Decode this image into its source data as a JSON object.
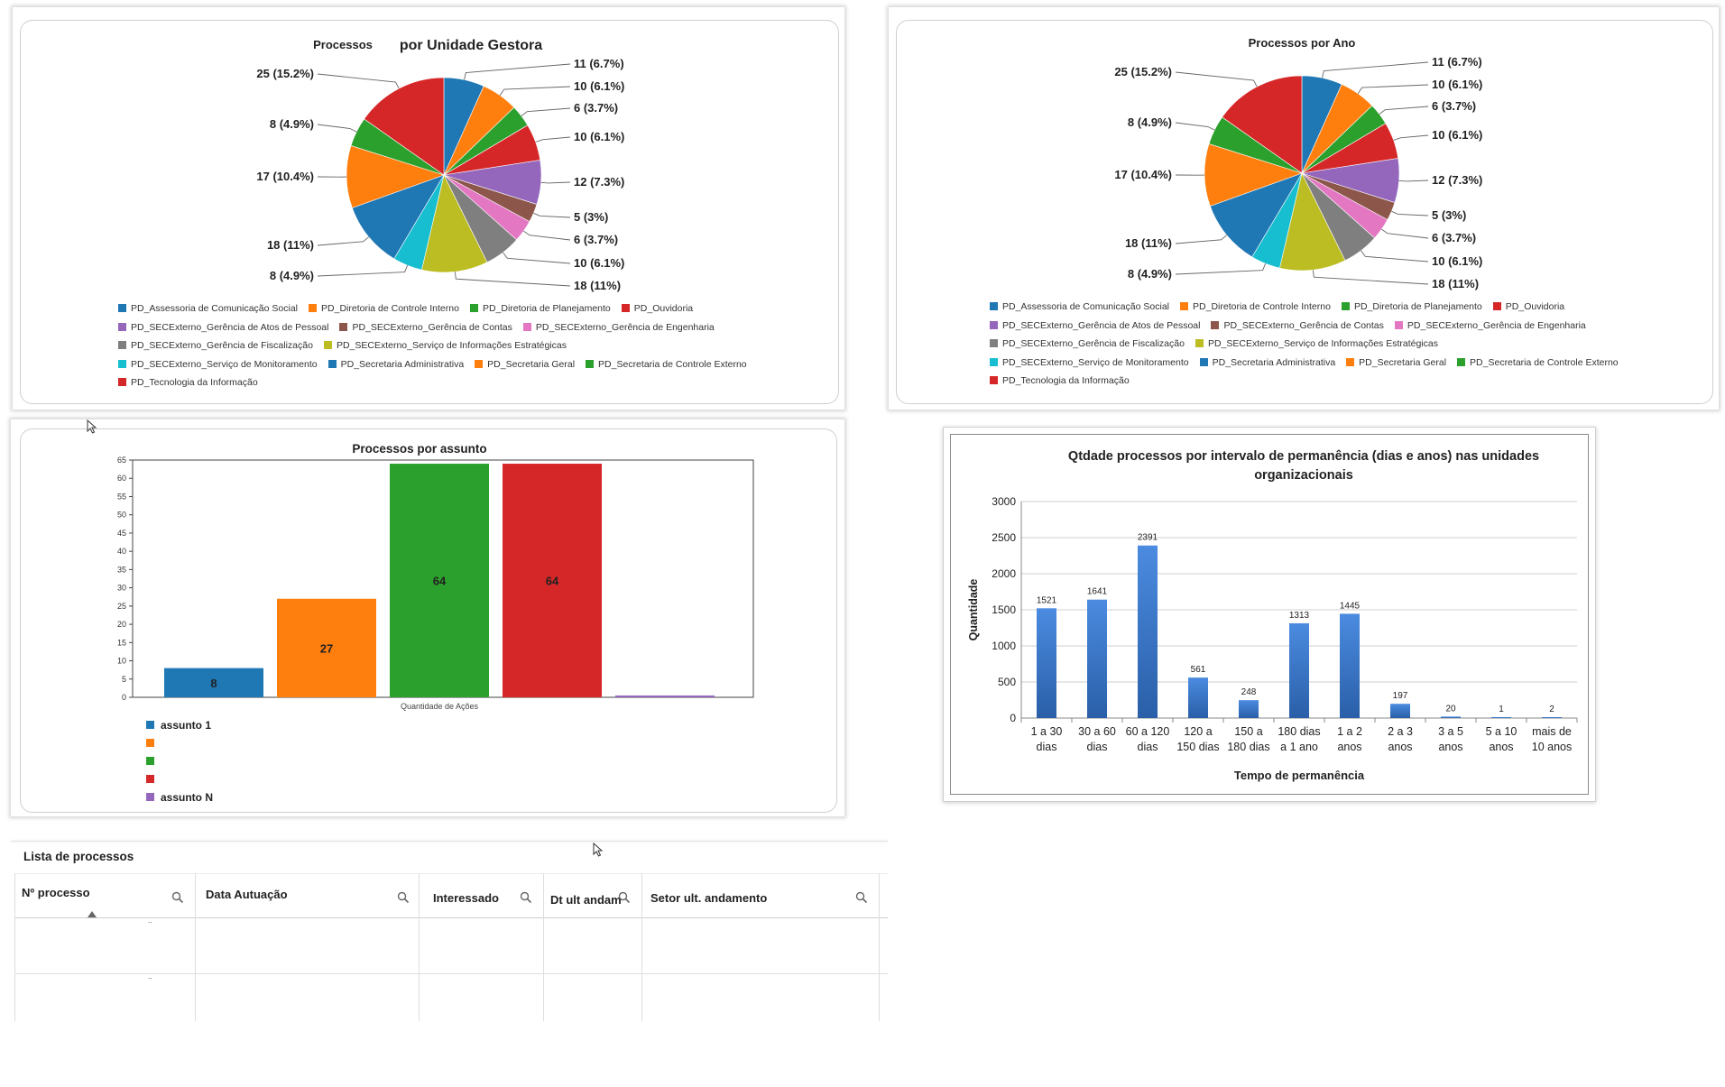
{
  "colors": {
    "blue": "#1f77b4",
    "orange": "#ff7f0e",
    "green": "#2ca02c",
    "red": "#d62728",
    "purple": "#9467bd",
    "brown": "#8c564b",
    "pink": "#e377c2",
    "gray": "#7f7f7f",
    "olive": "#bcbd22",
    "cyan": "#17becf",
    "bar_blue": "#3a78c8"
  },
  "chart_data": [
    {
      "type": "pie",
      "title_part1": "Processos",
      "title_part2": "por Unidade Gestora",
      "slices": [
        {
          "value": 11,
          "label": "11 (6.7%)",
          "color": "#1f77b4"
        },
        {
          "value": 10,
          "label": "10 (6.1%)",
          "color": "#ff7f0e"
        },
        {
          "value": 6,
          "label": "6 (3.7%)",
          "color": "#2ca02c"
        },
        {
          "value": 10,
          "label": "10 (6.1%)",
          "color": "#d62728"
        },
        {
          "value": 12,
          "label": "12 (7.3%)",
          "color": "#9467bd"
        },
        {
          "value": 5,
          "label": "5 (3%)",
          "color": "#8c564b"
        },
        {
          "value": 6,
          "label": "6 (3.7%)",
          "color": "#e377c2"
        },
        {
          "value": 10,
          "label": "10 (6.1%)",
          "color": "#7f7f7f"
        },
        {
          "value": 18,
          "label": "18 (11%)",
          "color": "#bcbd22"
        },
        {
          "value": 8,
          "label": "8 (4.9%)",
          "color": "#17becf"
        },
        {
          "value": 18,
          "label": "18 (11%)",
          "color": "#1f77b4"
        },
        {
          "value": 17,
          "label": "17 (10.4%)",
          "color": "#ff7f0e"
        },
        {
          "value": 8,
          "label": "8 (4.9%)",
          "color": "#2ca02c"
        },
        {
          "value": 25,
          "label": "25 (15.2%)",
          "color": "#d62728"
        }
      ],
      "legend": [
        {
          "name": "PD_Assessoria de Comunicação Social",
          "color": "#1f77b4"
        },
        {
          "name": "PD_Diretoria de Controle Interno",
          "color": "#ff7f0e"
        },
        {
          "name": "PD_Diretoria de Planejamento",
          "color": "#2ca02c"
        },
        {
          "name": "PD_Ouvidoria",
          "color": "#d62728"
        },
        {
          "name": "PD_SECExterno_Gerência de Atos de Pessoal",
          "color": "#9467bd"
        },
        {
          "name": "PD_SECExterno_Gerência de Contas",
          "color": "#8c564b"
        },
        {
          "name": "PD_SECExterno_Gerência de Engenharia",
          "color": "#e377c2"
        },
        {
          "name": "PD_SECExterno_Gerência de Fiscalização",
          "color": "#7f7f7f"
        },
        {
          "name": "PD_SECExterno_Serviço de Informações Estratégicas",
          "color": "#bcbd22"
        },
        {
          "name": "PD_SECExterno_Serviço de Monitoramento",
          "color": "#17becf"
        },
        {
          "name": "PD_Secretaria Administrativa",
          "color": "#1f77b4"
        },
        {
          "name": "PD_Secretaria Geral",
          "color": "#ff7f0e"
        },
        {
          "name": "PD_Secretaria de Controle Externo",
          "color": "#2ca02c"
        },
        {
          "name": "PD_Tecnologia da Informação",
          "color": "#d62728"
        }
      ],
      "legend_rows": [
        4,
        3,
        2,
        4,
        1
      ]
    },
    {
      "type": "pie",
      "title": "Processos por Ano",
      "slices": [
        {
          "value": 11,
          "label": "11 (6.7%)",
          "color": "#1f77b4"
        },
        {
          "value": 10,
          "label": "10 (6.1%)",
          "color": "#ff7f0e"
        },
        {
          "value": 6,
          "label": "6 (3.7%)",
          "color": "#2ca02c"
        },
        {
          "value": 10,
          "label": "10 (6.1%)",
          "color": "#d62728"
        },
        {
          "value": 12,
          "label": "12 (7.3%)",
          "color": "#9467bd"
        },
        {
          "value": 5,
          "label": "5 (3%)",
          "color": "#8c564b"
        },
        {
          "value": 6,
          "label": "6 (3.7%)",
          "color": "#e377c2"
        },
        {
          "value": 10,
          "label": "10 (6.1%)",
          "color": "#7f7f7f"
        },
        {
          "value": 18,
          "label": "18 (11%)",
          "color": "#bcbd22"
        },
        {
          "value": 8,
          "label": "8 (4.9%)",
          "color": "#17becf"
        },
        {
          "value": 18,
          "label": "18 (11%)",
          "color": "#1f77b4"
        },
        {
          "value": 17,
          "label": "17 (10.4%)",
          "color": "#ff7f0e"
        },
        {
          "value": 8,
          "label": "8 (4.9%)",
          "color": "#2ca02c"
        },
        {
          "value": 25,
          "label": "25 (15.2%)",
          "color": "#d62728"
        }
      ],
      "legend": [
        {
          "name": "PD_Assessoria de Comunicação Social",
          "color": "#1f77b4"
        },
        {
          "name": "PD_Diretoria de Controle Interno",
          "color": "#ff7f0e"
        },
        {
          "name": "PD_Diretoria de Planejamento",
          "color": "#2ca02c"
        },
        {
          "name": "PD_Ouvidoria",
          "color": "#d62728"
        },
        {
          "name": "PD_SECExterno_Gerência de Atos de Pessoal",
          "color": "#9467bd"
        },
        {
          "name": "PD_SECExterno_Gerência de Contas",
          "color": "#8c564b"
        },
        {
          "name": "PD_SECExterno_Gerência de Engenharia",
          "color": "#e377c2"
        },
        {
          "name": "PD_SECExterno_Gerência de Fiscalização",
          "color": "#7f7f7f"
        },
        {
          "name": "PD_SECExterno_Serviço de Informações Estratégicas",
          "color": "#bcbd22"
        },
        {
          "name": "PD_SECExterno_Serviço de Monitoramento",
          "color": "#17becf"
        },
        {
          "name": "PD_Secretaria Administrativa",
          "color": "#1f77b4"
        },
        {
          "name": "PD_Secretaria Geral",
          "color": "#ff7f0e"
        },
        {
          "name": "PD_Secretaria de Controle Externo",
          "color": "#2ca02c"
        },
        {
          "name": "PD_Tecnologia da Informação",
          "color": "#d62728"
        }
      ],
      "legend_rows": [
        4,
        3,
        2,
        4,
        1
      ]
    },
    {
      "type": "bar",
      "title": "Processos por assunto",
      "xlabel": "Quantidade de Ações",
      "ylim": [
        0,
        65
      ],
      "yticks": [
        0,
        5,
        10,
        15,
        20,
        25,
        30,
        35,
        40,
        45,
        50,
        55,
        60,
        65
      ],
      "bars": [
        {
          "value": 8,
          "label": "8",
          "color": "#1f77b4"
        },
        {
          "value": 27,
          "label": "27",
          "color": "#ff7f0e"
        },
        {
          "value": 64,
          "label": "64",
          "color": "#2ca02c"
        },
        {
          "value": 64,
          "label": "64",
          "color": "#d62728"
        },
        {
          "value": 0.5,
          "label": "",
          "color": "#9467bd"
        }
      ],
      "legend": [
        {
          "name": "assunto 1",
          "color": "#1f77b4"
        },
        {
          "name": "",
          "color": "#ff7f0e"
        },
        {
          "name": "",
          "color": "#2ca02c"
        },
        {
          "name": "",
          "color": "#d62728"
        },
        {
          "name": "assunto N",
          "color": "#9467bd"
        }
      ]
    },
    {
      "type": "bar",
      "title_line1": "Qtdade processos por intervalo de permanência (dias e anos) nas unidades",
      "title_line2": "organizacionais",
      "xlabel": "Tempo de permanência",
      "ylabel": "Quantidade",
      "ylim": [
        0,
        3000
      ],
      "yticks": [
        0,
        500,
        1000,
        1500,
        2000,
        2500,
        3000
      ],
      "categories": [
        [
          "1 a 30",
          "dias"
        ],
        [
          "30 a 60",
          "dias"
        ],
        [
          "60 a 120",
          "dias"
        ],
        [
          "120 a",
          "150 dias"
        ],
        [
          "150 a",
          "180 dias"
        ],
        [
          "180 dias",
          "a 1 ano"
        ],
        [
          "1 a 2",
          "anos"
        ],
        [
          "2 a 3",
          "anos"
        ],
        [
          "3 a 5",
          "anos"
        ],
        [
          "5 a 10",
          "anos"
        ],
        [
          "mais de",
          "10 anos"
        ]
      ],
      "values": [
        1521,
        1641,
        2391,
        561,
        248,
        1313,
        1445,
        197,
        20,
        1,
        2
      ],
      "value_labels": [
        "1521",
        "1641",
        "2391",
        "561",
        "248",
        "1313",
        "1445",
        "197",
        "20",
        "1",
        "2"
      ]
    }
  ],
  "table": {
    "title": "Lista de processos",
    "columns": [
      "Nº processo",
      "Data Autuação",
      "Interessado",
      "Dt ult andam",
      "Setor ult. andamento"
    ],
    "rows": [
      [
        "..",
        "",
        "",
        "",
        ""
      ],
      [
        "..",
        "",
        "",
        "",
        ""
      ]
    ]
  }
}
